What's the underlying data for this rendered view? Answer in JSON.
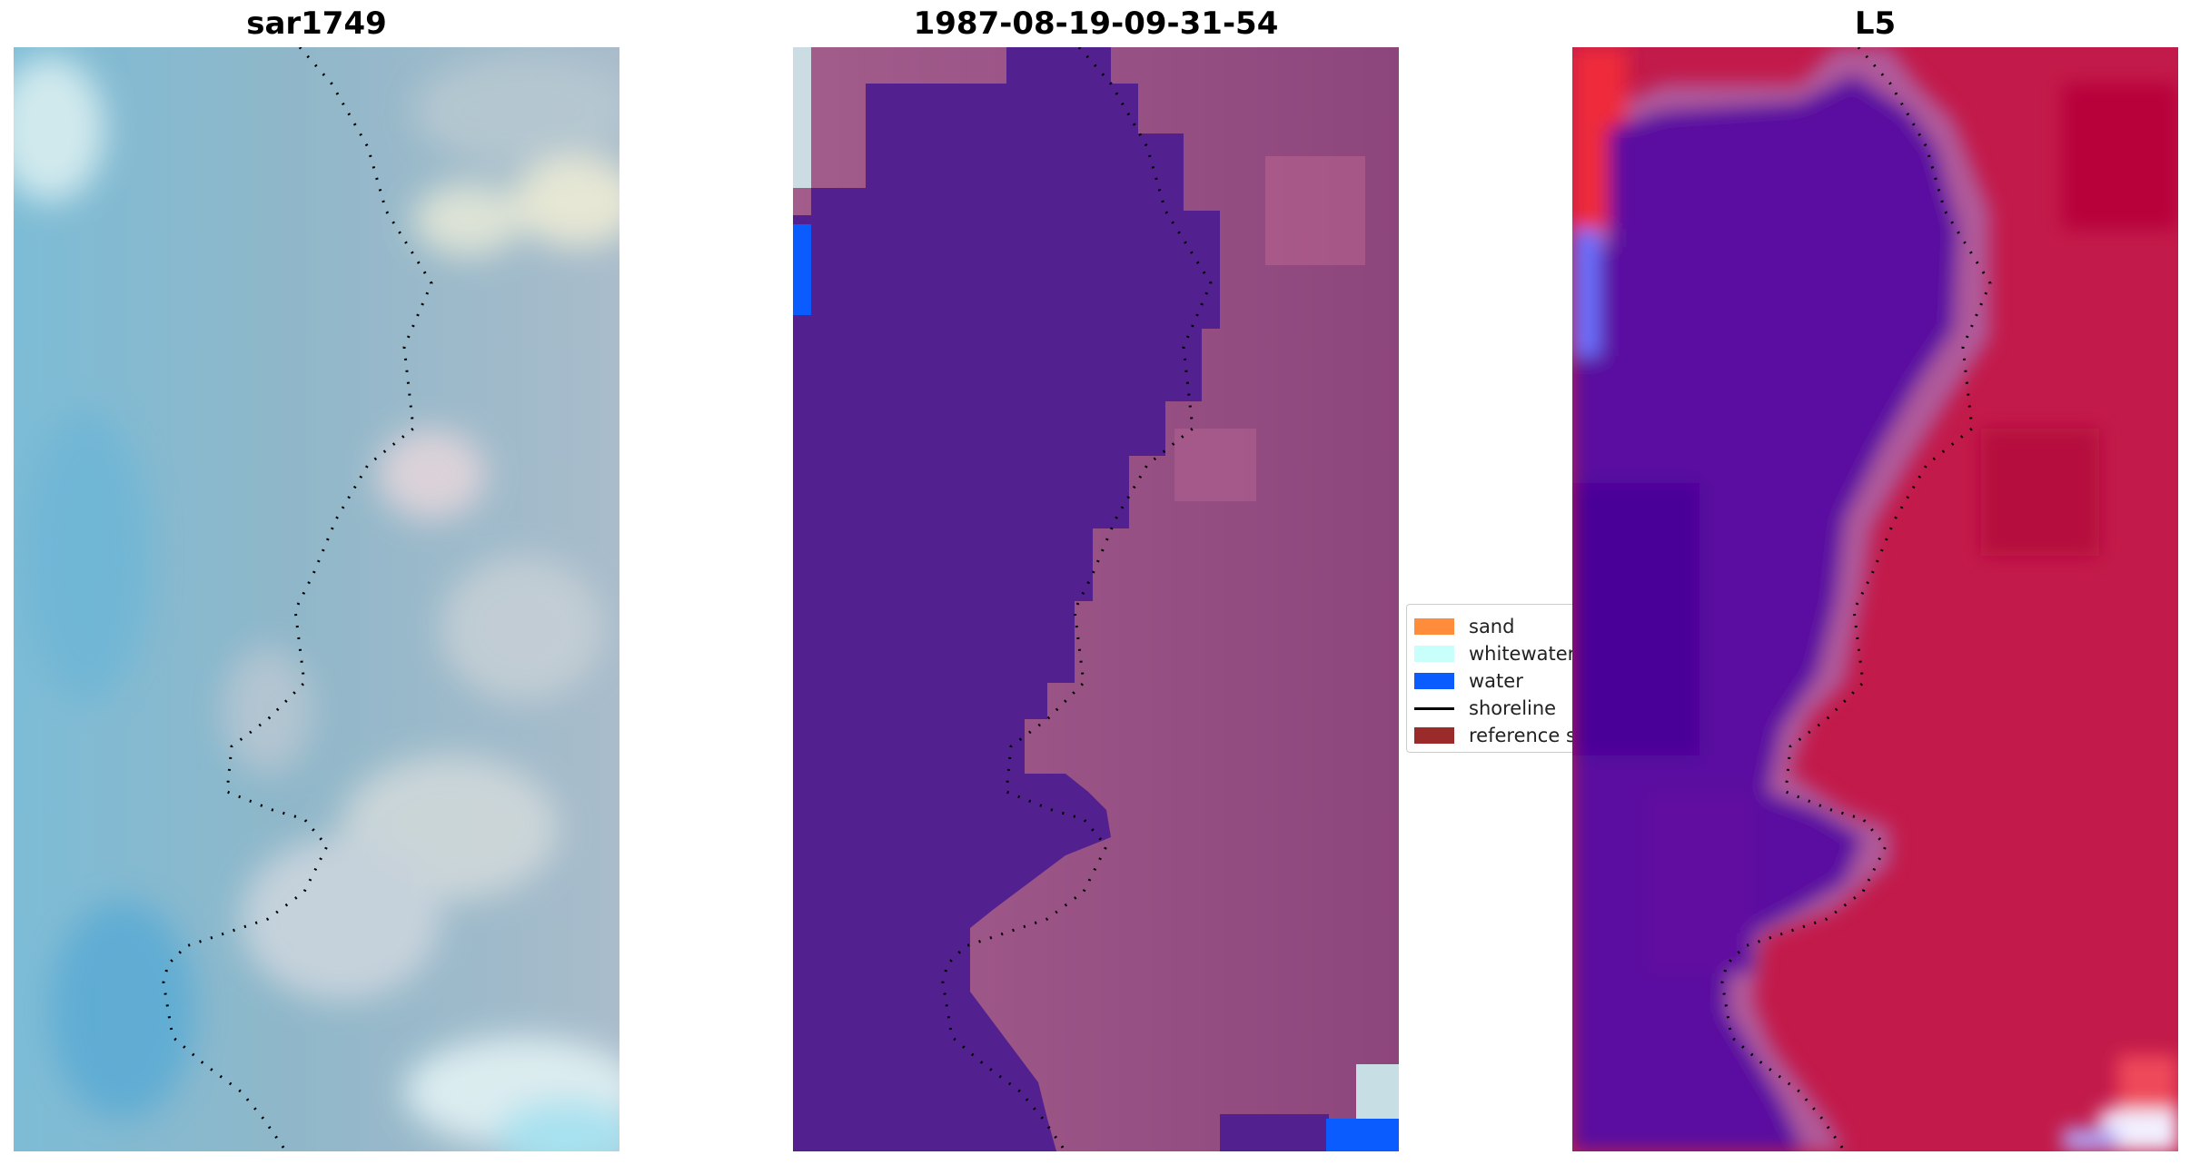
{
  "panels": [
    {
      "title": "sar1749"
    },
    {
      "title": "1987-08-19-09-31-54"
    },
    {
      "title": "L5"
    }
  ],
  "legend": {
    "items": [
      {
        "label": "sand",
        "color": "#ff8c3a",
        "kind": "patch"
      },
      {
        "label": "whitewater",
        "color": "#c8fffa",
        "kind": "patch"
      },
      {
        "label": "water",
        "color": "#0a5cff",
        "kind": "patch"
      },
      {
        "label": "shoreline",
        "color": "#000000",
        "kind": "line"
      },
      {
        "label": "reference s",
        "color": "#9b2a2a",
        "kind": "patch"
      }
    ]
  },
  "colors": {
    "water_rgb": [
      "#7aaed0",
      "#5a9cc8"
    ],
    "land_rgb": [
      "#c8d2d6",
      "#9bb4c4"
    ],
    "classified_water": "#52218f",
    "classified_land": "#a05a8a",
    "mndwi_water": "#5a0aa0",
    "mndwi_land": "#c21a4a"
  }
}
